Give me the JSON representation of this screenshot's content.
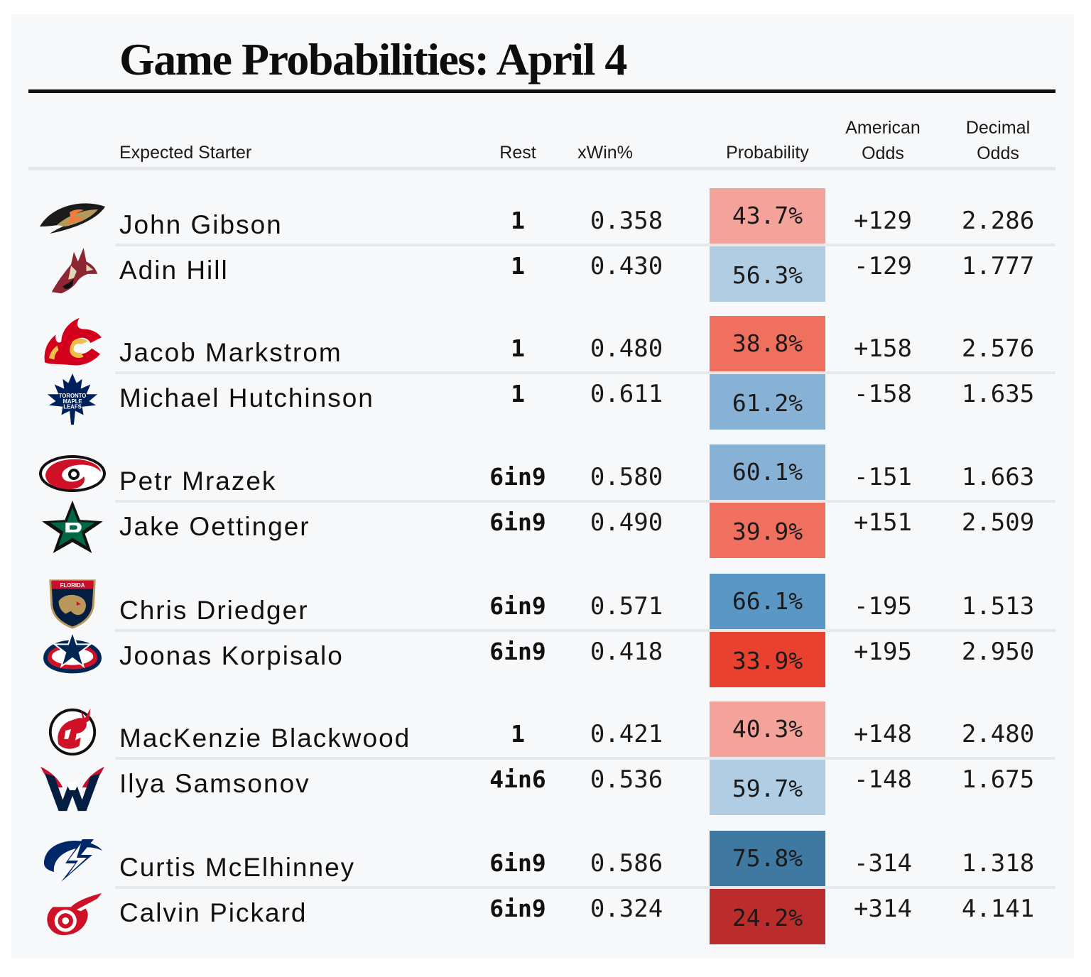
{
  "title": "Game Probabilities: April 4",
  "headers": {
    "starter": "Expected Starter",
    "rest": "Rest",
    "xwin": "xWin%",
    "probability": "Probability",
    "american_1": "American",
    "american_2": "Odds",
    "decimal_1": "Decimal",
    "decimal_2": "Odds"
  },
  "colors": {
    "red_strong": "#bb2c2c",
    "red": "#e8412f",
    "red_mid": "#f07060",
    "red_light": "#f4a39a",
    "blue_light": "#b1cde4",
    "blue_mid": "#88b2d5",
    "blue": "#5b97c4",
    "blue_strong": "#3f78a0"
  },
  "chart_data": {
    "type": "table",
    "title": "Game Probabilities: April 4",
    "columns": [
      "Expected Starter",
      "Rest",
      "xWin%",
      "Probability",
      "American Odds",
      "Decimal Odds"
    ],
    "games": [
      {
        "rows": [
          {
            "team_icon": "anaheim-ducks-icon",
            "starter": "John Gibson",
            "rest": "1",
            "xwin": "0.358",
            "probability": "43.7%",
            "prob_value": 0.437,
            "prob_color": "#f4a39a",
            "american": "+129",
            "decimal": "2.286"
          },
          {
            "team_icon": "arizona-coyotes-icon",
            "starter": "Adin Hill",
            "rest": "1",
            "xwin": "0.430",
            "probability": "56.3%",
            "prob_value": 0.563,
            "prob_color": "#b1cde4",
            "american": "-129",
            "decimal": "1.777"
          }
        ]
      },
      {
        "rows": [
          {
            "team_icon": "calgary-flames-icon",
            "starter": "Jacob Markstrom",
            "rest": "1",
            "xwin": "0.480",
            "probability": "38.8%",
            "prob_value": 0.388,
            "prob_color": "#f07060",
            "american": "+158",
            "decimal": "2.576"
          },
          {
            "team_icon": "toronto-maple-leafs-icon",
            "starter": "Michael Hutchinson",
            "rest": "1",
            "xwin": "0.611",
            "probability": "61.2%",
            "prob_value": 0.612,
            "prob_color": "#88b2d5",
            "american": "-158",
            "decimal": "1.635",
            "logo_text": [
              "TORONTO",
              "MAPLE",
              "LEAFS"
            ]
          }
        ]
      },
      {
        "rows": [
          {
            "team_icon": "carolina-hurricanes-icon",
            "starter": "Petr Mrazek",
            "rest": "6in9",
            "xwin": "0.580",
            "probability": "60.1%",
            "prob_value": 0.601,
            "prob_color": "#88b2d5",
            "american": "-151",
            "decimal": "1.663"
          },
          {
            "team_icon": "dallas-stars-icon",
            "starter": "Jake Oettinger",
            "rest": "6in9",
            "xwin": "0.490",
            "probability": "39.9%",
            "prob_value": 0.399,
            "prob_color": "#f07060",
            "american": "+151",
            "decimal": "2.509"
          }
        ]
      },
      {
        "rows": [
          {
            "team_icon": "florida-panthers-icon",
            "starter": "Chris Driedger",
            "rest": "6in9",
            "xwin": "0.571",
            "probability": "66.1%",
            "prob_value": 0.661,
            "prob_color": "#5b97c4",
            "american": "-195",
            "decimal": "1.513",
            "logo_text": [
              "FLORIDA"
            ]
          },
          {
            "team_icon": "columbus-blue-jackets-icon",
            "starter": "Joonas Korpisalo",
            "rest": "6in9",
            "xwin": "0.418",
            "probability": "33.9%",
            "prob_value": 0.339,
            "prob_color": "#e8412f",
            "american": "+195",
            "decimal": "2.950"
          }
        ]
      },
      {
        "rows": [
          {
            "team_icon": "new-jersey-devils-icon",
            "starter": "MacKenzie Blackwood",
            "rest": "1",
            "xwin": "0.421",
            "probability": "40.3%",
            "prob_value": 0.403,
            "prob_color": "#f4a39a",
            "american": "+148",
            "decimal": "2.480"
          },
          {
            "team_icon": "washington-capitals-icon",
            "starter": "Ilya Samsonov",
            "rest": "4in6",
            "xwin": "0.536",
            "probability": "59.7%",
            "prob_value": 0.597,
            "prob_color": "#b1cde4",
            "american": "-148",
            "decimal": "1.675"
          }
        ]
      },
      {
        "rows": [
          {
            "team_icon": "tampa-bay-lightning-icon",
            "starter": "Curtis McElhinney",
            "rest": "6in9",
            "xwin": "0.586",
            "probability": "75.8%",
            "prob_value": 0.758,
            "prob_color": "#3f78a0",
            "american": "-314",
            "decimal": "1.318"
          },
          {
            "team_icon": "detroit-red-wings-icon",
            "starter": "Calvin Pickard",
            "rest": "6in9",
            "xwin": "0.324",
            "probability": "24.2%",
            "prob_value": 0.242,
            "prob_color": "#bb2c2c",
            "american": "+314",
            "decimal": "4.141"
          }
        ]
      }
    ]
  }
}
